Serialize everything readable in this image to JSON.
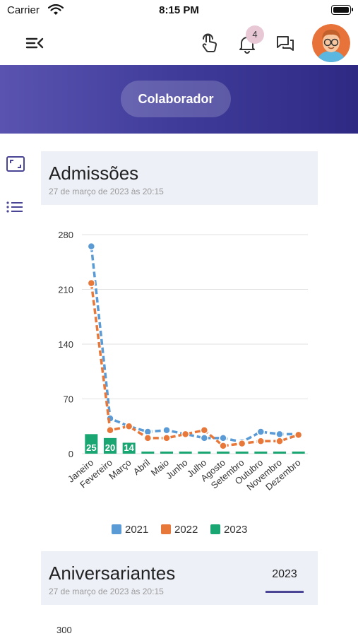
{
  "status_bar": {
    "carrier": "Carrier",
    "time": "8:15 PM"
  },
  "topbar": {
    "notification_count": "4"
  },
  "hero": {
    "pill_label": "Colaborador"
  },
  "card_admissoes": {
    "title": "Admissões",
    "subtitle": "27 de março de 2023 às 20:15"
  },
  "card_aniversariantes": {
    "title": "Aniversariantes",
    "subtitle": "27 de março de 2023 às 20:15",
    "year_tab": "2023",
    "y_tick_top": "300"
  },
  "chart_data": {
    "type": "line",
    "categories": [
      "Janeiro",
      "Fevereiro",
      "Março",
      "Abril",
      "Maio",
      "Junho",
      "Julho",
      "Agosto",
      "Setembro",
      "Outubro",
      "Novembro",
      "Dezembro"
    ],
    "yticks": [
      0,
      70,
      140,
      210,
      280
    ],
    "ylim": [
      0,
      280
    ],
    "legend_position": "bottom",
    "series": [
      {
        "name": "2021",
        "kind": "line",
        "color": "#5b9bd5",
        "values": [
          265,
          45,
          35,
          28,
          30,
          25,
          20,
          20,
          15,
          28,
          25,
          25
        ]
      },
      {
        "name": "2022",
        "kind": "line",
        "color": "#e8773a",
        "values": [
          218,
          30,
          35,
          20,
          20,
          25,
          30,
          10,
          13,
          16,
          16,
          24
        ]
      },
      {
        "name": "2023",
        "kind": "bar",
        "color": "#1aa673",
        "values": [
          25,
          20,
          14,
          0,
          0,
          0,
          0,
          0,
          0,
          0,
          0,
          0
        ]
      }
    ]
  }
}
